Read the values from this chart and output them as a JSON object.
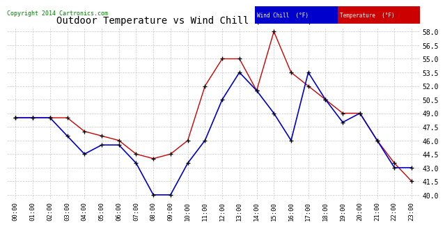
{
  "title": "Outdoor Temperature vs Wind Chill (24 Hours)  20140408",
  "copyright": "Copyright 2014 Cartronics.com",
  "hours": [
    "00:00",
    "01:00",
    "02:00",
    "03:00",
    "04:00",
    "05:00",
    "06:00",
    "07:00",
    "08:00",
    "09:00",
    "10:00",
    "11:00",
    "12:00",
    "13:00",
    "14:00",
    "15:00",
    "16:00",
    "17:00",
    "18:00",
    "19:00",
    "20:00",
    "21:00",
    "22:00",
    "23:00"
  ],
  "temperature": [
    48.5,
    48.5,
    48.5,
    48.5,
    47.0,
    46.5,
    46.0,
    44.5,
    44.0,
    44.5,
    46.0,
    52.0,
    55.0,
    55.0,
    51.5,
    58.0,
    53.5,
    52.0,
    50.5,
    49.0,
    49.0,
    46.0,
    43.5,
    41.5
  ],
  "wind_chill": [
    48.5,
    48.5,
    48.5,
    46.5,
    44.5,
    45.5,
    45.5,
    43.5,
    40.0,
    40.0,
    43.5,
    46.0,
    50.5,
    53.5,
    51.5,
    49.0,
    46.0,
    53.5,
    50.5,
    48.0,
    49.0,
    46.0,
    43.0,
    43.0
  ],
  "ylim": [
    39.5,
    58.5
  ],
  "yticks": [
    40.0,
    41.5,
    43.0,
    44.5,
    46.0,
    47.5,
    49.0,
    50.5,
    52.0,
    53.5,
    55.0,
    56.5,
    58.0
  ],
  "temp_color": "#cc0000",
  "wind_color": "#0000cc",
  "background_color": "#ffffff",
  "grid_color": "#bbbbbb",
  "title_fontsize": 10,
  "legend_wind_bg": "#0000cc",
  "legend_temp_bg": "#cc0000",
  "legend_wind_label": "Wind Chill  (°F)",
  "legend_temp_label": "Temperature  (°F)"
}
